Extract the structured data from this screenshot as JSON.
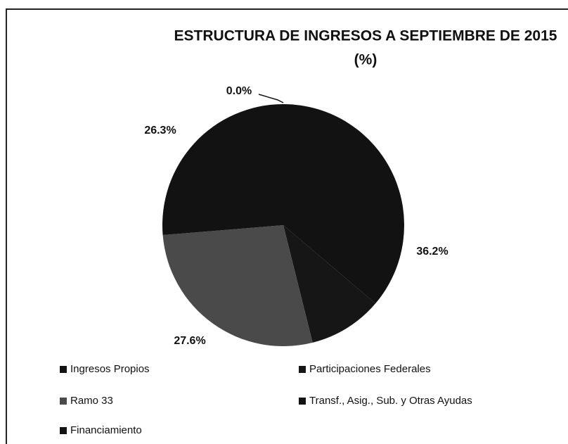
{
  "chart_data": {
    "type": "pie",
    "title": "ESTRUCTURA DE INGRESOS A SEPTIEMBRE DE 2015",
    "subtitle": "(%)",
    "categories": [
      "Ingresos Propios",
      "Participaciones Federales",
      "Ramo 33",
      "Transf., Asig., Sub. y Otras Ayudas",
      "Financiamiento"
    ],
    "values": [
      36.2,
      9.9,
      27.6,
      26.3,
      0.0
    ],
    "value_labels": [
      "36.2%",
      null,
      "27.6%",
      "26.3%",
      "0.0%"
    ],
    "colors": [
      "#121212",
      "#161616",
      "#4a4a4a",
      "#121212",
      "#121212"
    ],
    "legend": "bottom"
  }
}
